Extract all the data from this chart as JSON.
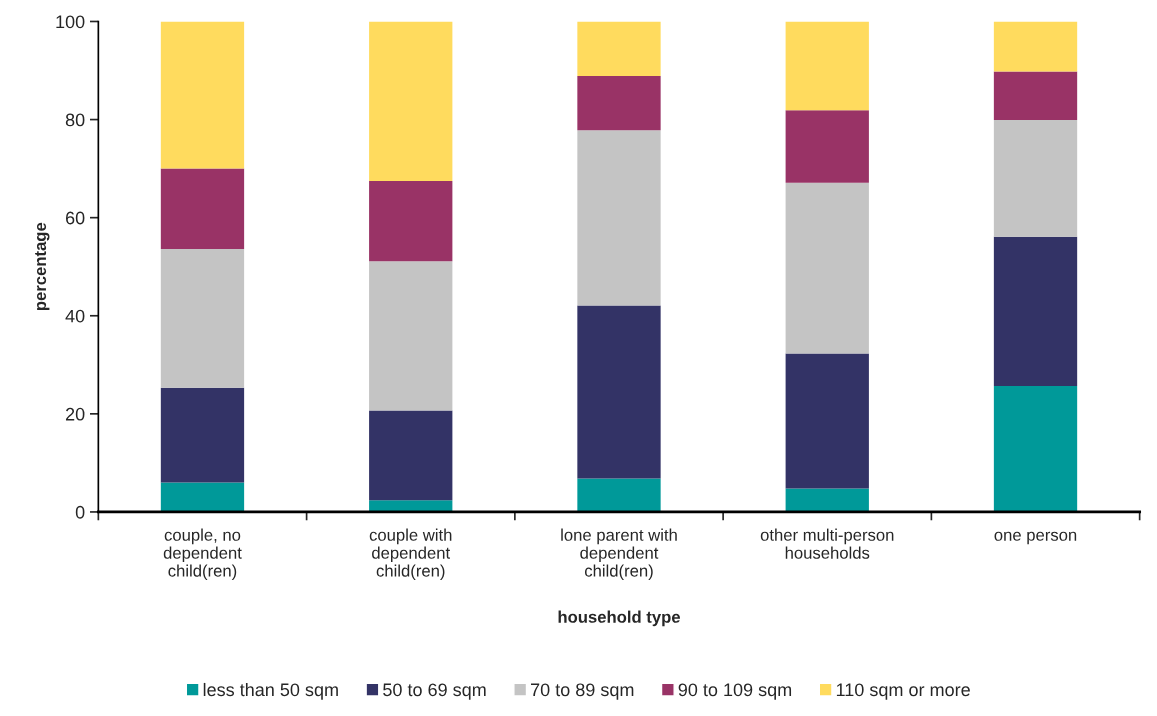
{
  "chart_data": {
    "type": "bar",
    "stacked": true,
    "xlabel": "household type",
    "ylabel": "percentage",
    "categories": [
      "couple, no\ndependent\nchild(ren)",
      "couple with\ndependent\nchild(ren)",
      "lone parent with\ndependent\nchild(ren)",
      "other multi-person\nhouseholds",
      "one person"
    ],
    "series": [
      {
        "name": "less than 50 sqm",
        "color": "#009999",
        "values": [
          6.0,
          2.4,
          6.8,
          4.8,
          25.7
        ]
      },
      {
        "name": "50 to 69 sqm",
        "color": "#333366",
        "values": [
          19.3,
          18.3,
          35.3,
          27.5,
          30.4
        ]
      },
      {
        "name": "70 to 89 sqm",
        "color": "#c4c4c4",
        "values": [
          28.3,
          30.4,
          35.7,
          34.8,
          23.8
        ]
      },
      {
        "name": "90 to 109 sqm",
        "color": "#993366",
        "values": [
          16.4,
          16.4,
          11.1,
          14.8,
          9.9
        ]
      },
      {
        "name": "110 sqm or more",
        "color": "#ffdb5e",
        "values": [
          30.0,
          32.5,
          11.1,
          18.1,
          10.2
        ]
      }
    ],
    "ylim": [
      0,
      100
    ],
    "yticks": [
      0,
      20,
      40,
      60,
      80,
      100
    ],
    "grid": false,
    "legend": "bottom"
  }
}
